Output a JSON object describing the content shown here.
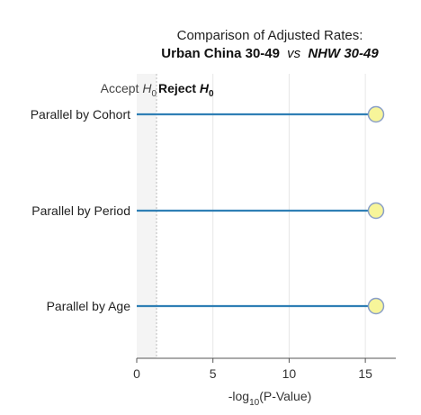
{
  "chart_data": {
    "type": "dot-plot",
    "title_line1": "Comparison of Adjusted Rates:",
    "title_line2": {
      "left": "Urban China 30-49",
      "vs": "vs",
      "right": "NHW 30-49"
    },
    "xlabel": {
      "prefix": "-log",
      "subscript": "10",
      "suffix": "(P-Value)"
    },
    "xlim": [
      0,
      17
    ],
    "xticks": [
      0,
      5,
      10,
      15
    ],
    "threshold": 1.3,
    "region_labels": {
      "accept": {
        "text": "Accept ",
        "symbol": "H",
        "subscript": "0"
      },
      "reject": {
        "text": "Reject ",
        "symbol": "H",
        "subscript": "0"
      }
    },
    "categories": [
      "Parallel by Cohort",
      "Parallel by Period",
      "Parallel by Age"
    ],
    "values": [
      15.7,
      15.7,
      15.7
    ],
    "colors": {
      "line": "#2f7fb5",
      "marker_fill": "#f7f59a",
      "marker_stroke": "#8a9fc8",
      "shade": "#f4f4f4",
      "threshold_line": "#bbbbbb",
      "grid": "#e6e6e6",
      "axis": "#555555"
    }
  }
}
